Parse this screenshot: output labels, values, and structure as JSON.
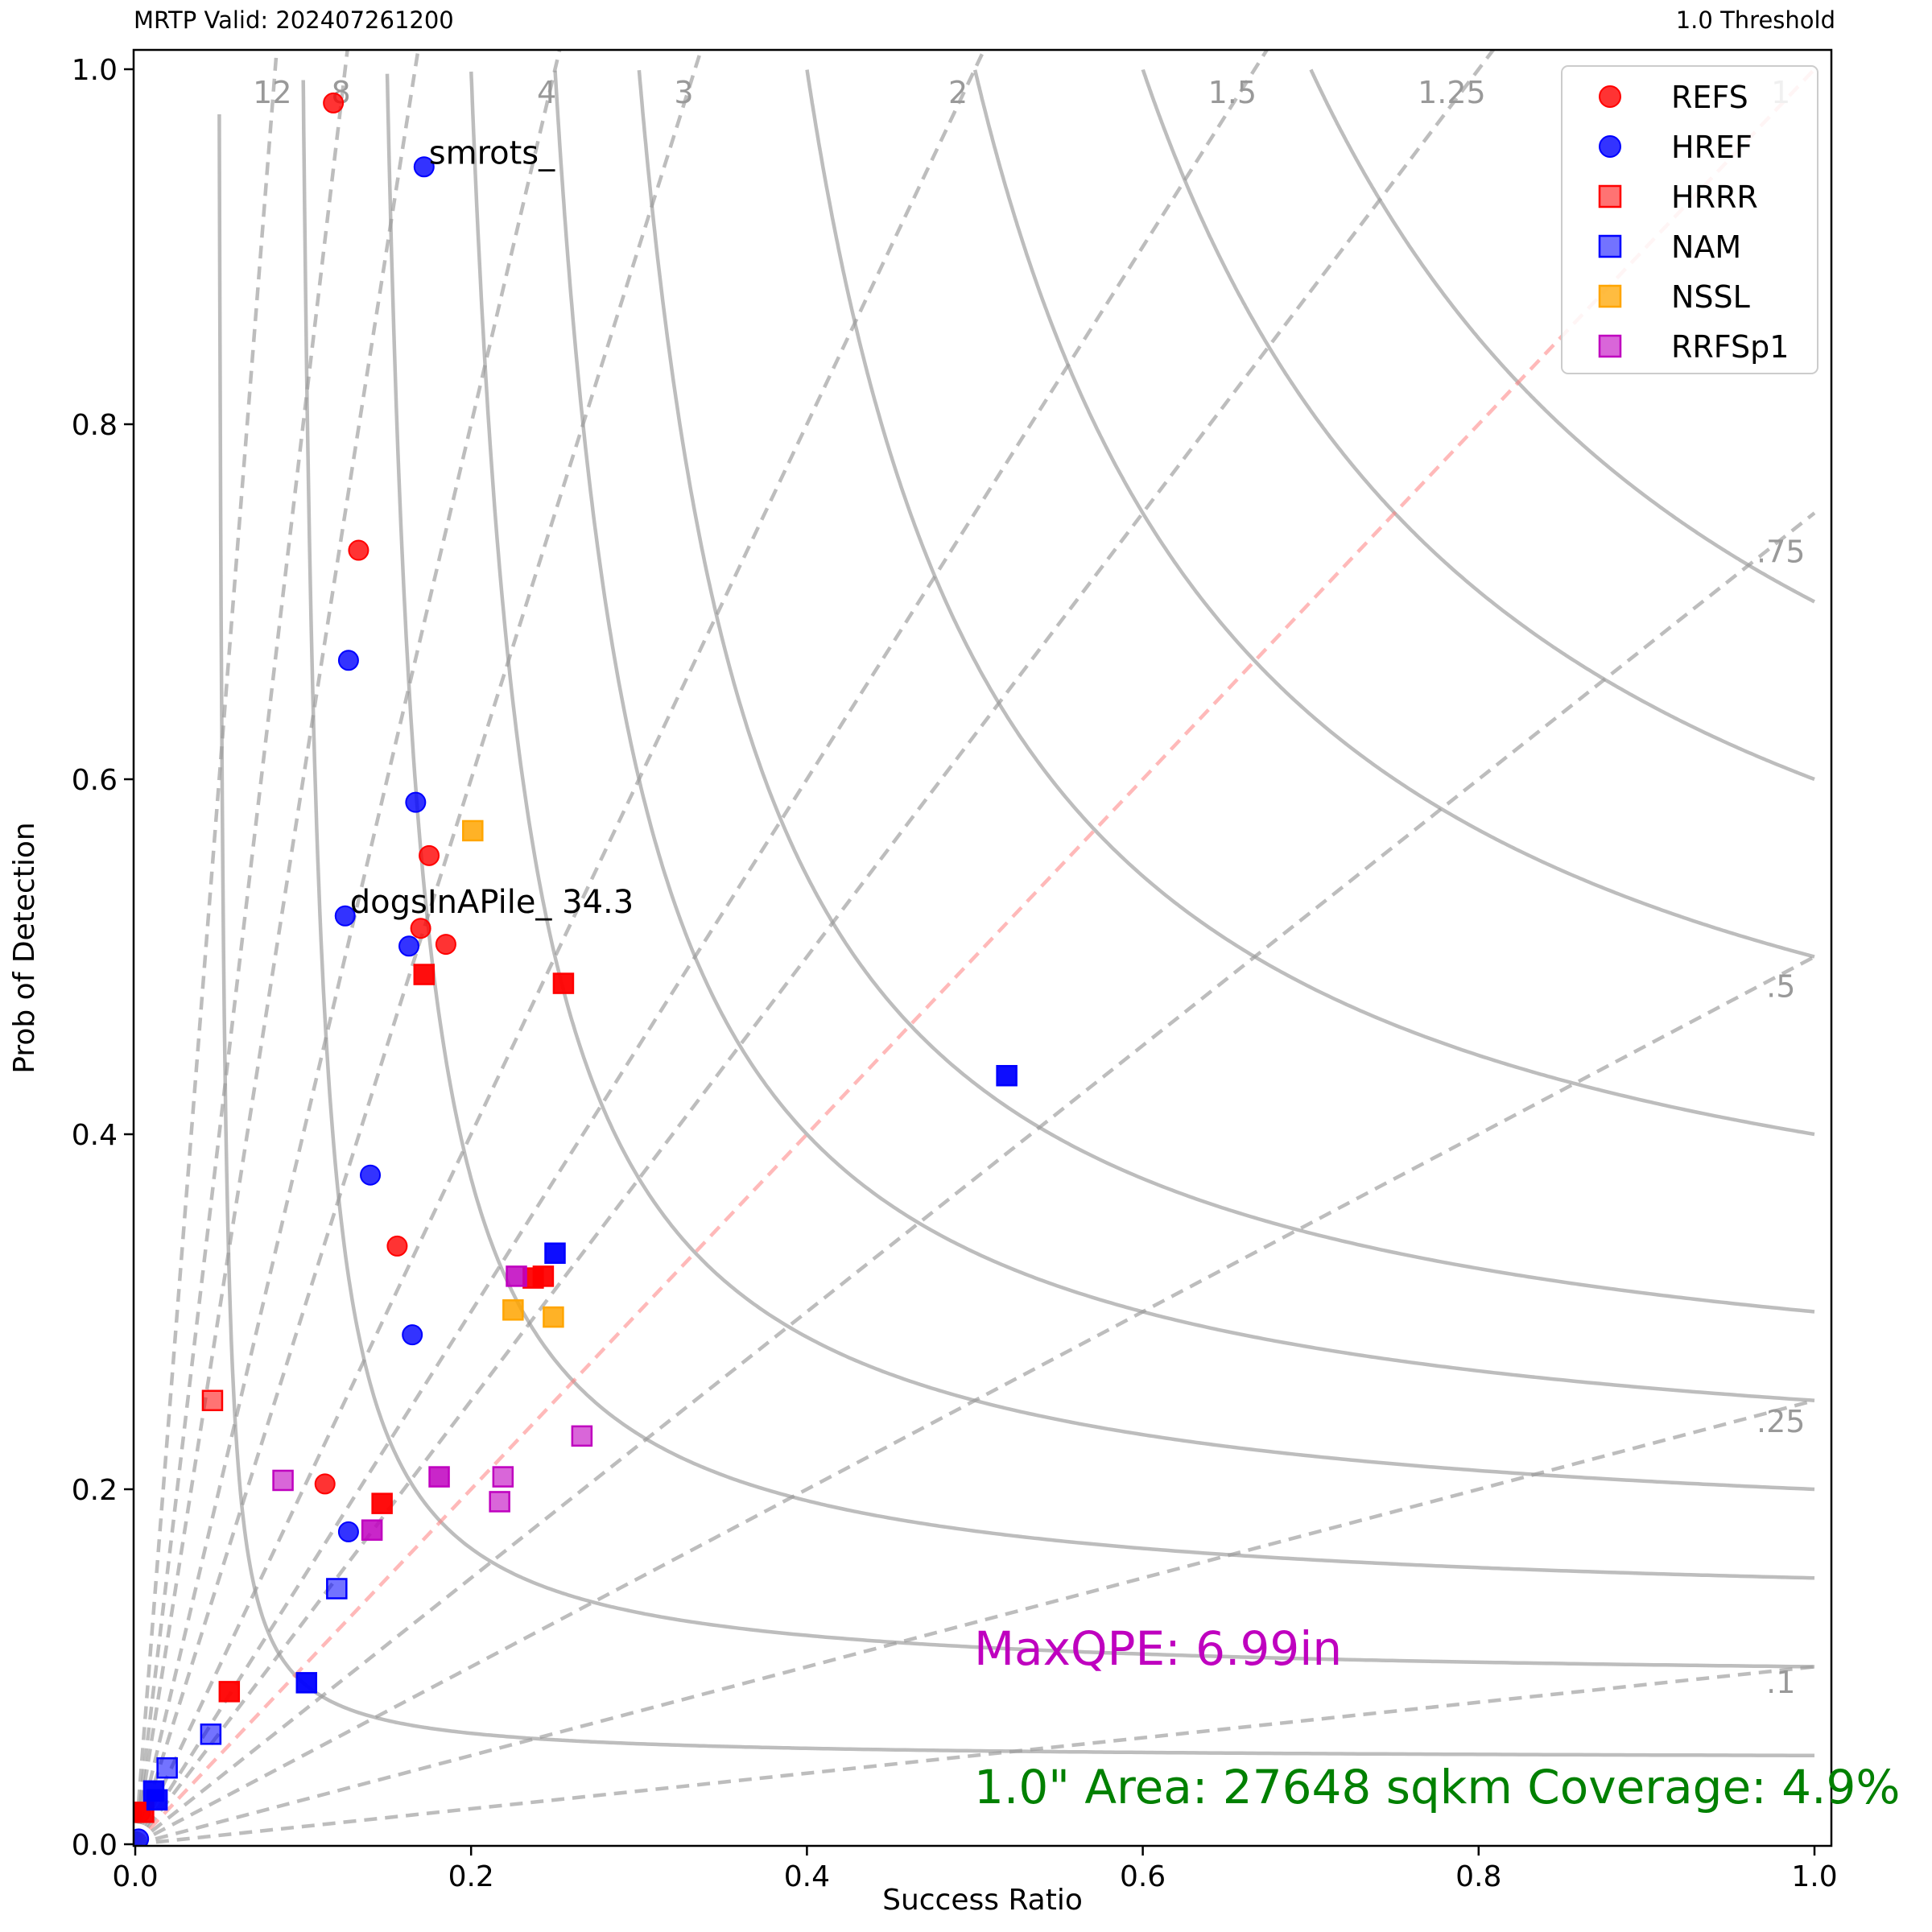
{
  "header": {
    "left": "MRTP Valid: 202407261200",
    "right": "1.0 Threshold"
  },
  "colors": {
    "REFS": "#ff0000",
    "HREF": "#0000ff",
    "HRRR": "#ff0000",
    "NAM": "#0000ff",
    "NSSL": "#ffa500",
    "RRFSp1": "#bf00bf",
    "maxqpe_text": "#bf00bf",
    "area_text": "#008000"
  },
  "chart_data": {
    "type": "scatter",
    "xlabel": "Success Ratio",
    "ylabel": "Prob of Detection",
    "xlim": [
      0.0,
      1.0
    ],
    "ylim": [
      0.0,
      1.0
    ],
    "xticks": [
      "0.0",
      "0.2",
      "0.4",
      "0.6",
      "0.8",
      "1.0"
    ],
    "yticks": [
      "0.0",
      "0.2",
      "0.4",
      "0.6",
      "0.8",
      "1.0"
    ],
    "bias_lines": [
      {
        "value": 12,
        "label": "12"
      },
      {
        "value": 8,
        "label": "8"
      },
      {
        "value": 6,
        "label": ""
      },
      {
        "value": 4,
        "label": "4"
      },
      {
        "value": 3,
        "label": "3"
      },
      {
        "value": 2,
        "label": "2"
      },
      {
        "value": 1.5,
        "label": "1.5"
      },
      {
        "value": 1.25,
        "label": "1.25"
      },
      {
        "value": 1,
        "label": "1"
      },
      {
        "value": 0.75,
        "label": ".75"
      },
      {
        "value": 0.5,
        "label": ".5"
      },
      {
        "value": 0.25,
        "label": ".25"
      },
      {
        "value": 0.1,
        "label": ".1"
      }
    ],
    "csi_lines": [
      0.05,
      0.1,
      0.15,
      0.2,
      0.25,
      0.3,
      0.4,
      0.5,
      0.6,
      0.7
    ],
    "legend_position": "top-right",
    "series": [
      {
        "name": "REFS",
        "marker": "circle",
        "points": [
          [
            0.118,
            0.981
          ],
          [
            0.133,
            0.729
          ],
          [
            0.175,
            0.557
          ],
          [
            0.17,
            0.516
          ],
          [
            0.185,
            0.507
          ],
          [
            0.156,
            0.337
          ],
          [
            0.113,
            0.203
          ],
          [
            0.003,
            0.018
          ]
        ]
      },
      {
        "name": "HREF",
        "marker": "circle",
        "points": [
          [
            0.172,
            0.945
          ],
          [
            0.127,
            0.667
          ],
          [
            0.167,
            0.587
          ],
          [
            0.125,
            0.523
          ],
          [
            0.163,
            0.506
          ],
          [
            0.14,
            0.377
          ],
          [
            0.165,
            0.287
          ],
          [
            0.127,
            0.176
          ],
          [
            0.002,
            0.003
          ]
        ]
      },
      {
        "name": "HRRR",
        "marker": "square",
        "alpha": 0.55,
        "points": [
          [
            0.046,
            0.25
          ]
        ]
      },
      {
        "name": "HRRR",
        "marker": "square",
        "alpha": 0.95,
        "points": [
          [
            0.172,
            0.49
          ],
          [
            0.255,
            0.485
          ],
          [
            0.237,
            0.319
          ],
          [
            0.243,
            0.32
          ],
          [
            0.147,
            0.192
          ],
          [
            0.056,
            0.086
          ],
          [
            0.005,
            0.018
          ]
        ]
      },
      {
        "name": "NAM",
        "marker": "square",
        "alpha": 0.55,
        "points": [
          [
            0.12,
            0.144
          ],
          [
            0.045,
            0.062
          ],
          [
            0.019,
            0.043
          ]
        ]
      },
      {
        "name": "NAM",
        "marker": "square",
        "alpha": 0.95,
        "points": [
          [
            0.519,
            0.433
          ],
          [
            0.25,
            0.333
          ],
          [
            0.102,
            0.091
          ],
          [
            0.011,
            0.03
          ],
          [
            0.013,
            0.025
          ]
        ]
      },
      {
        "name": "NSSL",
        "marker": "square",
        "alpha": 0.85,
        "points": [
          [
            0.201,
            0.571
          ],
          [
            0.225,
            0.301
          ],
          [
            0.249,
            0.297
          ]
        ]
      },
      {
        "name": "RRFSp1",
        "marker": "square",
        "alpha": 0.6,
        "points": [
          [
            0.088,
            0.205
          ],
          [
            0.266,
            0.23
          ],
          [
            0.219,
            0.207
          ],
          [
            0.217,
            0.193
          ]
        ]
      },
      {
        "name": "RRFSp1",
        "marker": "square",
        "alpha": 0.85,
        "points": [
          [
            0.227,
            0.32
          ],
          [
            0.181,
            0.207
          ],
          [
            0.141,
            0.177
          ]
        ]
      }
    ],
    "annotations": [
      {
        "text": "smrots_",
        "x": 0.172,
        "y": 0.945
      },
      {
        "text": "dogsInAPile_ 34.3",
        "x": 0.125,
        "y": 0.523
      }
    ],
    "legend": [
      {
        "label": "REFS",
        "marker": "circle",
        "alpha": 0.8
      },
      {
        "label": "HREF",
        "marker": "circle",
        "alpha": 0.8
      },
      {
        "label": "HRRR",
        "marker": "square",
        "alpha": 0.55
      },
      {
        "label": "NAM",
        "marker": "square",
        "alpha": 0.55
      },
      {
        "label": "NSSL",
        "marker": "square",
        "alpha": 0.75
      },
      {
        "label": "RRFSp1",
        "marker": "square",
        "alpha": 0.6
      }
    ],
    "text_notes": {
      "maxqpe": "MaxQPE: 6.99in",
      "area": "1.0\" Area: 27648 sqkm Coverage: 4.9%"
    }
  }
}
